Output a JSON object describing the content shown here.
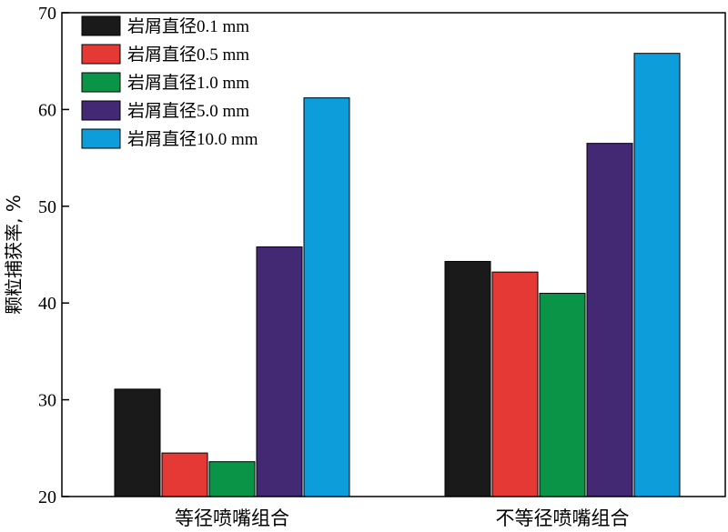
{
  "chart_data": {
    "type": "bar",
    "categories": [
      "等径喷嘴组合",
      "不等径喷嘴组合"
    ],
    "series": [
      {
        "name": "岩屑直径0.1 mm",
        "color": "#1a1a1a",
        "values": [
          31.1,
          44.3
        ]
      },
      {
        "name": "岩屑直径0.5 mm",
        "color": "#e53935",
        "values": [
          24.5,
          43.2
        ]
      },
      {
        "name": "岩屑直径1.0 mm",
        "color": "#0a9447",
        "values": [
          23.6,
          41.0
        ]
      },
      {
        "name": "岩屑直径5.0 mm",
        "color": "#432874",
        "values": [
          45.8,
          56.5
        ]
      },
      {
        "name": "岩屑直径10.0 mm",
        "color": "#0d9ddb",
        "values": [
          61.2,
          65.8
        ]
      }
    ],
    "ylabel": "颗粒捕获率, %",
    "xlabel": "",
    "ylim": [
      20,
      70
    ],
    "yticks": [
      20,
      30,
      40,
      50,
      60,
      70
    ],
    "grid": false,
    "legend_position": "top-left"
  }
}
